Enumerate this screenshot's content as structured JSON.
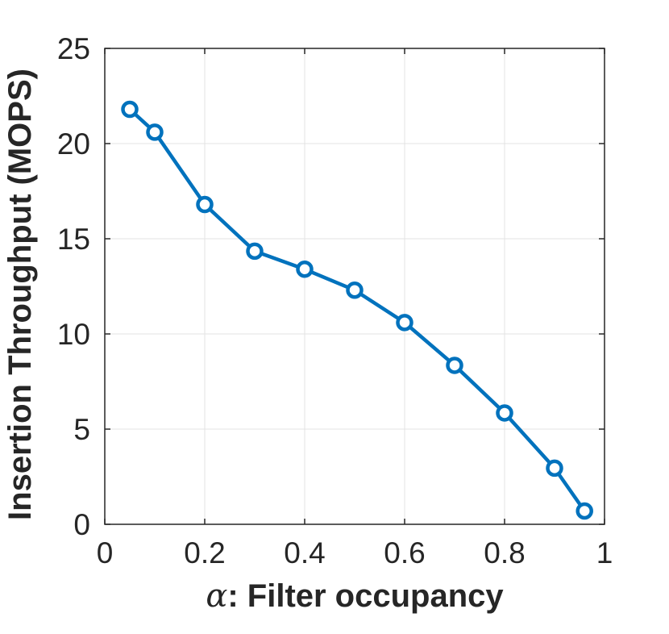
{
  "chart_data": {
    "type": "line",
    "xlabel_symbol": "α",
    "xlabel_text": ": Filter occupancy",
    "ylabel": "Insertion Throughput (MOPS)",
    "xlim": [
      0,
      1
    ],
    "ylim": [
      0,
      25
    ],
    "x_ticks": [
      0,
      0.2,
      0.4,
      0.6,
      0.8,
      1
    ],
    "x_tick_labels": [
      "0",
      "0.2",
      "0.4",
      "0.6",
      "0.8",
      "1"
    ],
    "y_ticks": [
      0,
      5,
      10,
      15,
      20,
      25
    ],
    "y_tick_labels": [
      "0",
      "5",
      "10",
      "15",
      "20",
      "25"
    ],
    "grid": true,
    "marker": "circle",
    "series_color": "#0072BD",
    "series": [
      {
        "x": [
          0.05,
          0.1,
          0.2,
          0.3,
          0.4,
          0.5,
          0.6,
          0.7,
          0.8,
          0.9,
          0.96
        ],
        "y": [
          21.8,
          20.6,
          16.8,
          14.35,
          13.4,
          12.3,
          10.6,
          8.35,
          5.85,
          2.95,
          0.7
        ]
      }
    ]
  }
}
